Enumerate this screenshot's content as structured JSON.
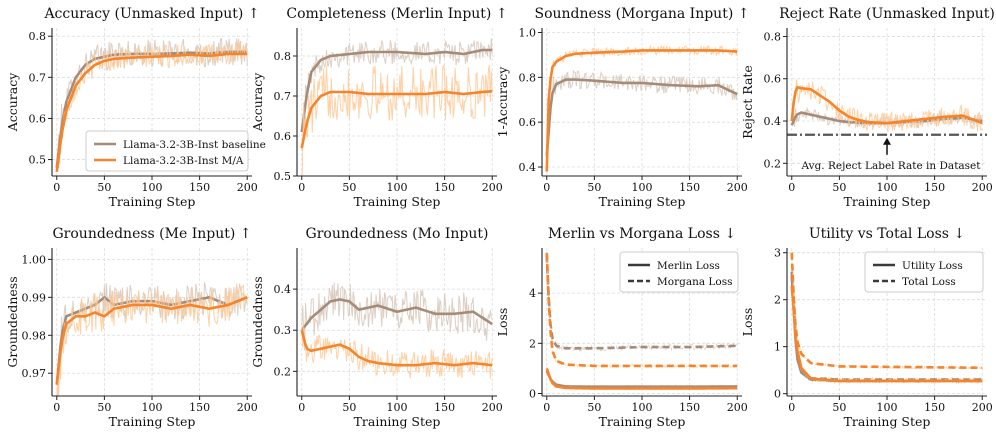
{
  "colors": {
    "baseline": "#a68b78",
    "ma": "#f5842a",
    "raw_baseline": "#d6c5b8",
    "raw_ma": "#ffc894",
    "grid": "#dcdcdc",
    "frame": "#222222",
    "ref_line": "#555555"
  },
  "chart_data": [
    {
      "type": "line",
      "title": "Accuracy (Unmasked Input) ↑",
      "xlabel": "Training Step",
      "ylabel": "Accuracy",
      "xlim": [
        -5,
        205
      ],
      "ylim": [
        0.46,
        0.82
      ],
      "xticks": [
        0,
        50,
        100,
        150,
        200
      ],
      "xtick_labels": [
        "0",
        "50",
        "100",
        "150",
        "200"
      ],
      "yticks": [
        0.5,
        0.6,
        0.7,
        0.8
      ],
      "ytick_labels": [
        "0.5",
        "0.6",
        "0.7",
        "0.8"
      ],
      "grid": true,
      "legend": {
        "position": "bottom-right",
        "entries": [
          "Llama-3.2-3B-Inst baseline",
          "Llama-3.2-3B-Inst M/A"
        ]
      },
      "series": [
        {
          "name": "Llama-3.2-3B-Inst baseline",
          "role": "baseline",
          "noise": 0.035,
          "x": [
            0,
            5,
            10,
            20,
            30,
            40,
            50,
            60,
            80,
            100,
            120,
            140,
            160,
            180,
            200
          ],
          "y": [
            0.48,
            0.58,
            0.64,
            0.7,
            0.73,
            0.745,
            0.75,
            0.755,
            0.757,
            0.757,
            0.758,
            0.76,
            0.758,
            0.762,
            0.762
          ]
        },
        {
          "name": "Llama-3.2-3B-Inst M/A",
          "role": "ma",
          "noise": 0.028,
          "x": [
            0,
            5,
            10,
            20,
            30,
            40,
            50,
            60,
            80,
            100,
            120,
            140,
            160,
            180,
            200
          ],
          "y": [
            0.47,
            0.56,
            0.62,
            0.68,
            0.71,
            0.73,
            0.74,
            0.745,
            0.748,
            0.75,
            0.752,
            0.755,
            0.752,
            0.757,
            0.757
          ]
        }
      ]
    },
    {
      "type": "line",
      "title": "Completeness (Merlin Input) ↑",
      "xlabel": "Training Step",
      "ylabel": "Accuracy",
      "xlim": [
        -5,
        205
      ],
      "ylim": [
        0.5,
        0.87
      ],
      "xticks": [
        0,
        50,
        100,
        150,
        200
      ],
      "xtick_labels": [
        "0",
        "50",
        "100",
        "150",
        "200"
      ],
      "yticks": [
        0.5,
        0.6,
        0.7,
        0.8
      ],
      "ytick_labels": [
        "0.5",
        "0.6",
        "0.7",
        "0.8"
      ],
      "grid": true,
      "series": [
        {
          "role": "baseline",
          "noise": 0.03,
          "x": [
            0,
            5,
            10,
            20,
            30,
            50,
            70,
            100,
            130,
            150,
            170,
            190,
            200
          ],
          "y": [
            0.61,
            0.7,
            0.76,
            0.79,
            0.8,
            0.805,
            0.81,
            0.81,
            0.805,
            0.81,
            0.805,
            0.815,
            0.815
          ]
        },
        {
          "role": "ma",
          "noise": 0.07,
          "x": [
            0,
            5,
            10,
            20,
            30,
            50,
            70,
            100,
            130,
            150,
            170,
            190,
            200
          ],
          "y": [
            0.57,
            0.63,
            0.67,
            0.7,
            0.71,
            0.71,
            0.705,
            0.705,
            0.705,
            0.71,
            0.705,
            0.71,
            0.712
          ]
        }
      ]
    },
    {
      "type": "line",
      "title": "Soundness (Morgana Input) ↑",
      "xlabel": "Training Step",
      "ylabel": "1-Accuracy",
      "xlim": [
        -5,
        205
      ],
      "ylim": [
        0.36,
        1.02
      ],
      "xticks": [
        0,
        50,
        100,
        150,
        200
      ],
      "xtick_labels": [
        "0",
        "50",
        "100",
        "150",
        "200"
      ],
      "yticks": [
        0.4,
        0.6,
        0.8,
        1.0
      ],
      "ytick_labels": [
        "0.4",
        "0.6",
        "0.8",
        "1.0"
      ],
      "grid": true,
      "series": [
        {
          "role": "baseline",
          "noise": 0.04,
          "x": [
            0,
            5,
            10,
            20,
            30,
            50,
            80,
            100,
            130,
            160,
            180,
            200
          ],
          "y": [
            0.45,
            0.72,
            0.77,
            0.79,
            0.79,
            0.785,
            0.775,
            0.775,
            0.765,
            0.76,
            0.765,
            0.725
          ]
        },
        {
          "role": "ma",
          "noise": 0.02,
          "x": [
            0,
            2,
            5,
            10,
            20,
            30,
            50,
            80,
            100,
            130,
            160,
            180,
            200
          ],
          "y": [
            0.38,
            0.7,
            0.84,
            0.87,
            0.895,
            0.905,
            0.91,
            0.915,
            0.92,
            0.92,
            0.92,
            0.92,
            0.915
          ]
        }
      ]
    },
    {
      "type": "line",
      "title": "Reject Rate (Unmasked Input)",
      "xlabel": "Training Step",
      "ylabel": "Reject Rate",
      "xlim": [
        -5,
        205
      ],
      "ylim": [
        0.14,
        0.84
      ],
      "xticks": [
        0,
        50,
        100,
        150,
        200
      ],
      "xtick_labels": [
        "0",
        "50",
        "100",
        "150",
        "200"
      ],
      "yticks": [
        0.2,
        0.4,
        0.6,
        0.8
      ],
      "ytick_labels": [
        "0.2",
        "0.4",
        "0.6",
        "0.8"
      ],
      "grid": true,
      "reference_line": {
        "y": 0.335,
        "label": "Avg. Reject Label Rate in Dataset",
        "arrow_x": 100
      },
      "series": [
        {
          "role": "baseline",
          "noise": 0.03,
          "x": [
            0,
            5,
            10,
            20,
            30,
            40,
            50,
            60,
            80,
            100,
            120,
            140,
            160,
            180,
            200
          ],
          "y": [
            0.38,
            0.43,
            0.44,
            0.43,
            0.42,
            0.41,
            0.4,
            0.395,
            0.39,
            0.39,
            0.395,
            0.4,
            0.41,
            0.415,
            0.4
          ]
        },
        {
          "role": "ma",
          "noise": 0.05,
          "x": [
            0,
            3,
            6,
            10,
            20,
            30,
            40,
            50,
            60,
            70,
            80,
            100,
            120,
            140,
            160,
            180,
            200
          ],
          "y": [
            0.4,
            0.53,
            0.56,
            0.555,
            0.55,
            0.52,
            0.49,
            0.45,
            0.42,
            0.405,
            0.395,
            0.39,
            0.4,
            0.41,
            0.42,
            0.425,
            0.39
          ]
        }
      ]
    },
    {
      "type": "line",
      "title": "Groundedness (Me Input) ↑",
      "xlabel": "Training Step",
      "ylabel": "Groundedness",
      "xlim": [
        -5,
        205
      ],
      "ylim": [
        0.964,
        1.003
      ],
      "xticks": [
        0,
        50,
        100,
        150,
        200
      ],
      "xtick_labels": [
        "0",
        "50",
        "100",
        "150",
        "200"
      ],
      "yticks": [
        0.97,
        0.98,
        0.99,
        1.0
      ],
      "ytick_labels": [
        "0.97",
        "0.98",
        "0.99",
        "1.00"
      ],
      "grid": true,
      "series": [
        {
          "role": "baseline",
          "noise": 0.0045,
          "x": [
            0,
            5,
            10,
            20,
            30,
            40,
            50,
            60,
            80,
            100,
            120,
            140,
            160,
            180,
            200
          ],
          "y": [
            0.967,
            0.98,
            0.985,
            0.986,
            0.987,
            0.988,
            0.99,
            0.988,
            0.989,
            0.989,
            0.988,
            0.989,
            0.99,
            0.988,
            0.99
          ]
        },
        {
          "role": "ma",
          "noise": 0.005,
          "x": [
            0,
            5,
            10,
            20,
            30,
            40,
            50,
            60,
            80,
            100,
            120,
            140,
            160,
            180,
            200
          ],
          "y": [
            0.967,
            0.978,
            0.983,
            0.985,
            0.985,
            0.986,
            0.985,
            0.987,
            0.988,
            0.988,
            0.987,
            0.988,
            0.987,
            0.988,
            0.99
          ]
        }
      ]
    },
    {
      "type": "line",
      "title": "Groundedness (Mo Input)",
      "xlabel": "Training Step",
      "ylabel": "Groundedness",
      "xlim": [
        -5,
        205
      ],
      "ylim": [
        0.14,
        0.5
      ],
      "xticks": [
        0,
        50,
        100,
        150,
        200
      ],
      "xtick_labels": [
        "0",
        "50",
        "100",
        "150",
        "200"
      ],
      "yticks": [
        0.2,
        0.3,
        0.4
      ],
      "ytick_labels": [
        "0.2",
        "0.3",
        "0.4"
      ],
      "grid": true,
      "series": [
        {
          "role": "baseline",
          "noise": 0.05,
          "x": [
            0,
            10,
            20,
            30,
            40,
            50,
            60,
            80,
            100,
            120,
            140,
            160,
            180,
            200
          ],
          "y": [
            0.3,
            0.33,
            0.35,
            0.37,
            0.375,
            0.37,
            0.35,
            0.36,
            0.345,
            0.355,
            0.34,
            0.34,
            0.345,
            0.315
          ]
        },
        {
          "role": "ma",
          "noise": 0.035,
          "x": [
            0,
            5,
            10,
            20,
            30,
            40,
            50,
            60,
            70,
            80,
            100,
            120,
            140,
            160,
            180,
            200
          ],
          "y": [
            0.3,
            0.255,
            0.25,
            0.255,
            0.26,
            0.265,
            0.255,
            0.235,
            0.225,
            0.22,
            0.215,
            0.215,
            0.22,
            0.215,
            0.22,
            0.215
          ]
        }
      ]
    },
    {
      "type": "line",
      "title": "Merlin vs Morgana Loss ↓",
      "xlabel": "Training Step",
      "ylabel": "Loss",
      "xlim": [
        -5,
        205
      ],
      "ylim": [
        -0.1,
        5.8
      ],
      "xticks": [
        0,
        50,
        100,
        150,
        200
      ],
      "xtick_labels": [
        "0",
        "50",
        "100",
        "150",
        "200"
      ],
      "yticks": [
        0,
        2,
        4
      ],
      "ytick_labels": [
        "0",
        "2",
        "4"
      ],
      "grid": true,
      "legend": {
        "position": "top-right",
        "entries": [
          "Merlin Loss",
          "Morgana Loss"
        ]
      },
      "series": [
        {
          "name": "Merlin Loss",
          "role": "baseline",
          "dash": false,
          "noise": 0.05,
          "x": [
            0,
            5,
            10,
            20,
            50,
            100,
            150,
            200
          ],
          "y": [
            0.9,
            0.5,
            0.35,
            0.28,
            0.27,
            0.27,
            0.27,
            0.28
          ]
        },
        {
          "name": "Morgana Loss",
          "role": "baseline",
          "dash": true,
          "noise": 0.1,
          "x": [
            0,
            3,
            6,
            10,
            20,
            50,
            100,
            150,
            200
          ],
          "y": [
            5.5,
            3.0,
            2.2,
            1.9,
            1.8,
            1.8,
            1.85,
            1.85,
            1.9
          ]
        },
        {
          "name": "Merlin Loss",
          "role": "ma",
          "dash": false,
          "noise": 0.04,
          "x": [
            0,
            5,
            10,
            20,
            50,
            100,
            150,
            200
          ],
          "y": [
            1.0,
            0.45,
            0.28,
            0.22,
            0.2,
            0.2,
            0.2,
            0.21
          ]
        },
        {
          "name": "Morgana Loss",
          "role": "ma",
          "dash": true,
          "noise": 0.06,
          "x": [
            0,
            3,
            6,
            10,
            20,
            50,
            100,
            150,
            200
          ],
          "y": [
            5.6,
            2.8,
            1.7,
            1.3,
            1.15,
            1.1,
            1.1,
            1.1,
            1.1
          ]
        }
      ]
    },
    {
      "type": "line",
      "title": "Utility vs Total Loss ↓",
      "xlabel": "Training Step",
      "ylabel": "Loss",
      "xlim": [
        -5,
        205
      ],
      "ylim": [
        -0.05,
        3.1
      ],
      "xticks": [
        0,
        50,
        100,
        150,
        200
      ],
      "xtick_labels": [
        "0",
        "50",
        "100",
        "150",
        "200"
      ],
      "yticks": [
        0,
        1,
        2,
        3
      ],
      "ytick_labels": [
        "0",
        "1",
        "2",
        "3"
      ],
      "grid": true,
      "legend": {
        "position": "top-right",
        "entries": [
          "Utility Loss",
          "Total Loss"
        ]
      },
      "series": [
        {
          "name": "Utility Loss",
          "role": "baseline",
          "dash": false,
          "noise": 0.04,
          "x": [
            0,
            5,
            10,
            20,
            50,
            100,
            150,
            200
          ],
          "y": [
            2.5,
            0.8,
            0.45,
            0.3,
            0.27,
            0.27,
            0.27,
            0.27
          ]
        },
        {
          "name": "Total Loss",
          "role": "baseline",
          "dash": true,
          "noise": 0.04,
          "x": [
            0,
            5,
            10,
            20,
            50,
            100,
            150,
            200
          ],
          "y": [
            2.6,
            0.9,
            0.5,
            0.33,
            0.3,
            0.3,
            0.3,
            0.3
          ]
        },
        {
          "name": "Utility Loss",
          "role": "ma",
          "dash": false,
          "noise": 0.04,
          "x": [
            0,
            5,
            10,
            20,
            50,
            100,
            150,
            200
          ],
          "y": [
            2.3,
            1.0,
            0.55,
            0.32,
            0.27,
            0.27,
            0.27,
            0.27
          ]
        },
        {
          "name": "Total Loss",
          "role": "ma",
          "dash": true,
          "noise": 0.03,
          "x": [
            0,
            3,
            6,
            10,
            20,
            50,
            100,
            150,
            200
          ],
          "y": [
            3.0,
            1.6,
            1.1,
            0.85,
            0.65,
            0.58,
            0.57,
            0.56,
            0.55
          ]
        }
      ]
    }
  ]
}
